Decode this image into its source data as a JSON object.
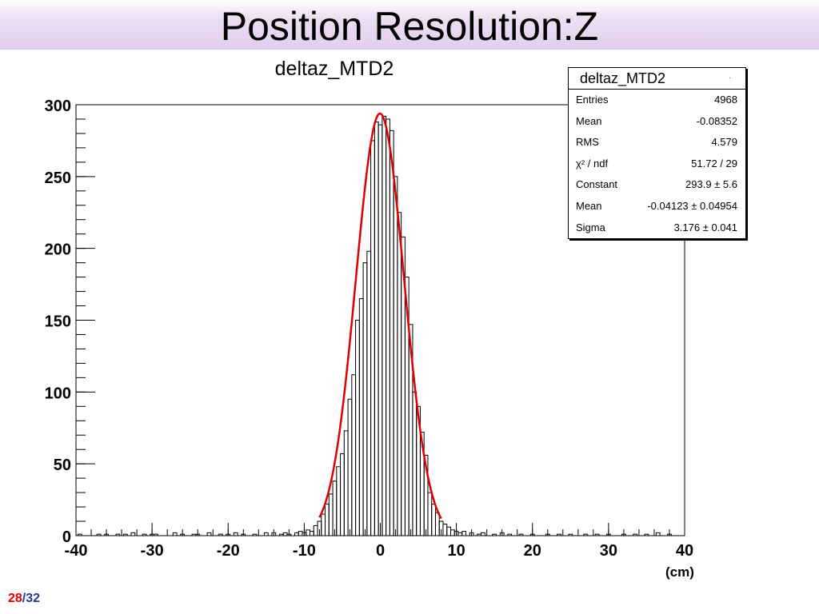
{
  "slide": {
    "title": "Position Resolution:Z",
    "page_current": "28",
    "page_separator": "/",
    "page_total": "32",
    "unit_label": "(cm)"
  },
  "stats_box": {
    "title": "deltaz_MTD2",
    "marker": ".",
    "rows": [
      {
        "label": "Entries",
        "value": "4968"
      },
      {
        "label": "Mean",
        "value": "-0.08352"
      },
      {
        "label": "RMS",
        "value": "4.579"
      },
      {
        "label": "χ² / ndf",
        "value": "51.72 / 29"
      },
      {
        "label": "Constant",
        "value": "293.9 ± 5.6"
      },
      {
        "label": "Mean",
        "value": "-0.04123 ± 0.04954"
      },
      {
        "label": "Sigma",
        "value": "3.176 ± 0.041"
      }
    ]
  },
  "chart_data": {
    "type": "histogram",
    "title": "deltaz_MTD2",
    "xlabel": "",
    "ylabel": "",
    "xlim": [
      -40,
      40
    ],
    "ylim": [
      0,
      300
    ],
    "x_ticks": [
      -40,
      -30,
      -20,
      -10,
      0,
      10,
      20,
      30,
      40
    ],
    "y_ticks": [
      0,
      50,
      100,
      150,
      200,
      250,
      300
    ],
    "bin_width": 0.5,
    "histogram_color": "#000000",
    "fit_color": "#e00000",
    "bins": [
      [
        -39.5,
        1
      ],
      [
        -37,
        1
      ],
      [
        -36,
        1
      ],
      [
        -34.5,
        1
      ],
      [
        -33.5,
        1
      ],
      [
        -32.5,
        2
      ],
      [
        -31,
        1
      ],
      [
        -30,
        1
      ],
      [
        -29.5,
        1
      ],
      [
        -27,
        2
      ],
      [
        -26,
        1
      ],
      [
        -24.5,
        1
      ],
      [
        -24,
        1
      ],
      [
        -22.5,
        2
      ],
      [
        -21,
        1
      ],
      [
        -20,
        1
      ],
      [
        -19,
        2
      ],
      [
        -18,
        1
      ],
      [
        -16.5,
        1
      ],
      [
        -15,
        2
      ],
      [
        -14,
        2
      ],
      [
        -13,
        1
      ],
      [
        -12.5,
        2
      ],
      [
        -12,
        1
      ],
      [
        -11,
        2
      ],
      [
        -10.5,
        3
      ],
      [
        -10,
        2
      ],
      [
        -9.5,
        4
      ],
      [
        -9,
        3
      ],
      [
        -8.5,
        7
      ],
      [
        -8,
        10
      ],
      [
        -7.5,
        15
      ],
      [
        -7,
        22
      ],
      [
        -6.5,
        29
      ],
      [
        -6,
        38
      ],
      [
        -5.5,
        48
      ],
      [
        -5,
        57
      ],
      [
        -4.5,
        73
      ],
      [
        -4,
        95
      ],
      [
        -3.5,
        112
      ],
      [
        -3,
        150
      ],
      [
        -2.5,
        165
      ],
      [
        -2,
        190
      ],
      [
        -1.5,
        198
      ],
      [
        -1,
        275
      ],
      [
        -0.5,
        288
      ],
      [
        0,
        286
      ],
      [
        0.5,
        292
      ],
      [
        1,
        290
      ],
      [
        1.5,
        282
      ],
      [
        2,
        250
      ],
      [
        2.5,
        225
      ],
      [
        3,
        208
      ],
      [
        3.5,
        180
      ],
      [
        4,
        147
      ],
      [
        4.5,
        100
      ],
      [
        5,
        90
      ],
      [
        5.5,
        72
      ],
      [
        6,
        56
      ],
      [
        6.5,
        30
      ],
      [
        7,
        22
      ],
      [
        7.5,
        16
      ],
      [
        8,
        10
      ],
      [
        8.5,
        8
      ],
      [
        9,
        6
      ],
      [
        9.5,
        4
      ],
      [
        10,
        3
      ],
      [
        10.5,
        2
      ],
      [
        11,
        3
      ],
      [
        12,
        2
      ],
      [
        13,
        1
      ],
      [
        13.5,
        2
      ],
      [
        15,
        1
      ],
      [
        16,
        2
      ],
      [
        17,
        1
      ],
      [
        18.5,
        1
      ],
      [
        20,
        1
      ],
      [
        22,
        1
      ],
      [
        23.5,
        1
      ],
      [
        25,
        1
      ],
      [
        27,
        1
      ],
      [
        28.5,
        1
      ],
      [
        30,
        1
      ],
      [
        32,
        1
      ],
      [
        33.5,
        1
      ],
      [
        35,
        1
      ],
      [
        36.5,
        2
      ],
      [
        38,
        1
      ]
    ],
    "fit": {
      "function": "gaus",
      "constant": 293.9,
      "mean": -0.04123,
      "sigma": 3.176,
      "x_range": [
        -8,
        8
      ]
    }
  }
}
